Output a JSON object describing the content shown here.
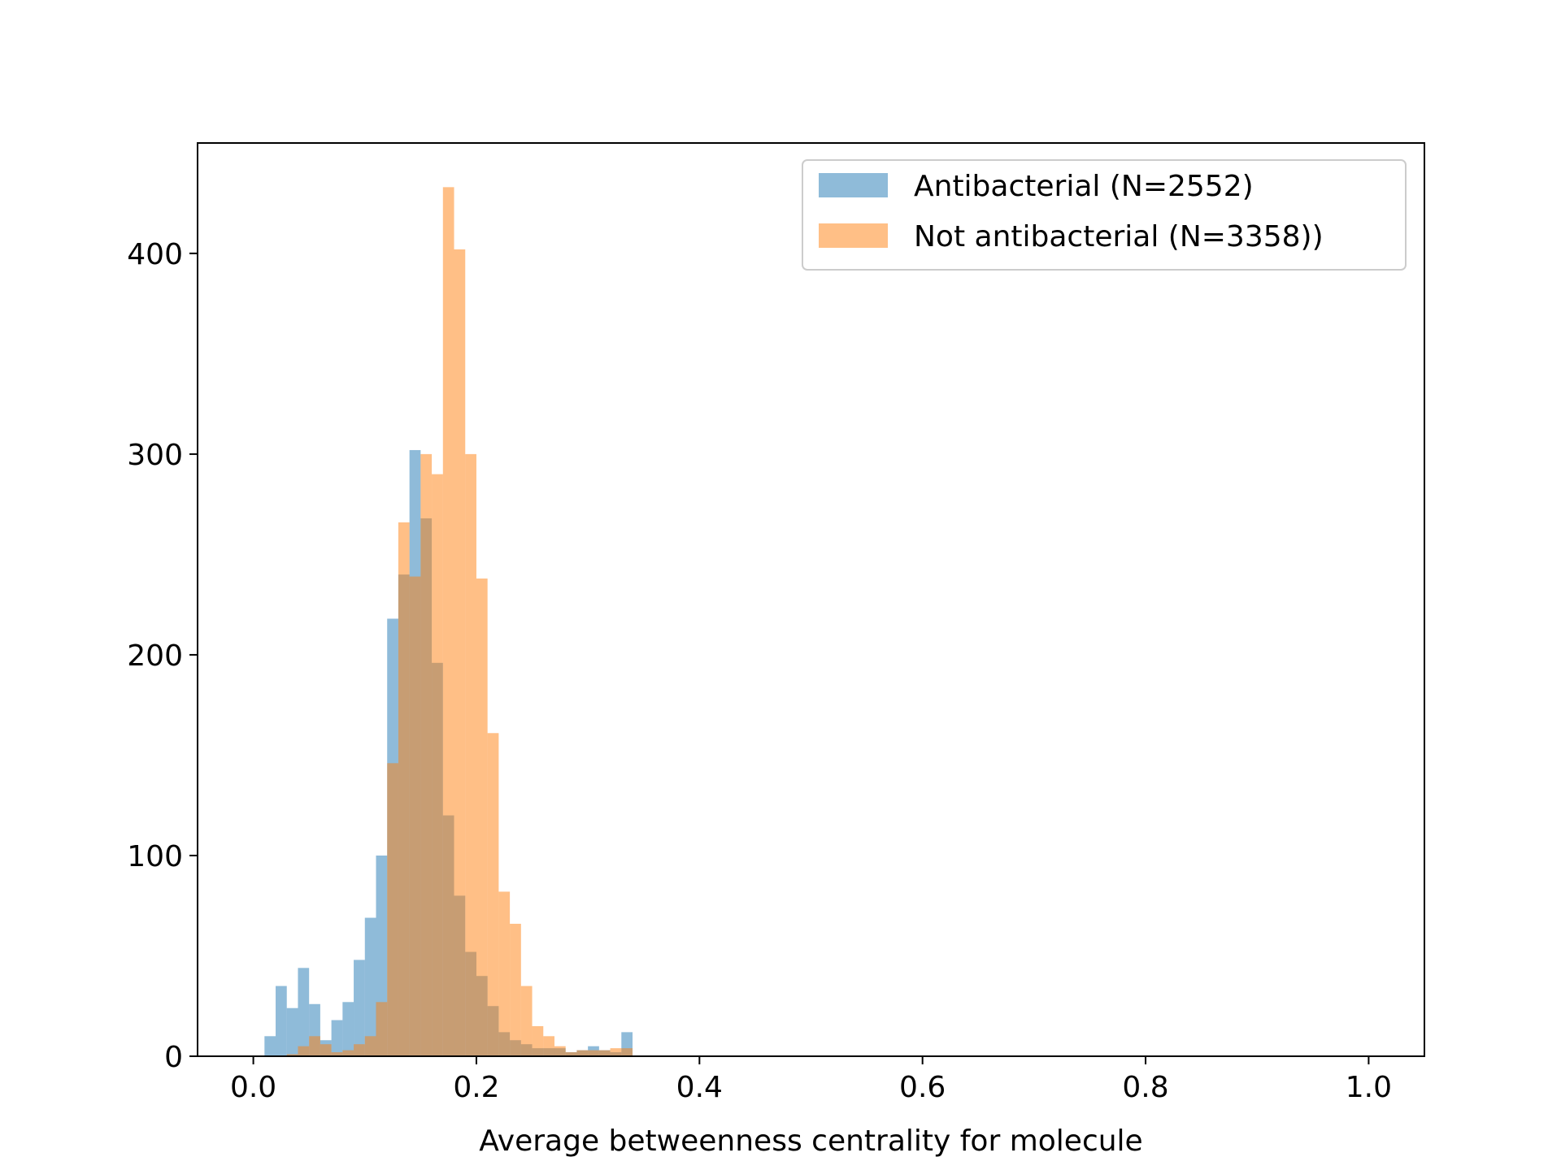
{
  "chart_data": {
    "type": "bar",
    "title": "",
    "xlabel": "Average betweenness centrality for molecule",
    "ylabel": "",
    "xlim": [
      -0.05,
      1.05
    ],
    "ylim": [
      0,
      455
    ],
    "xticks": [
      "0.0",
      "0.2",
      "0.4",
      "0.6",
      "0.8",
      "1.0"
    ],
    "yticks": [
      "0",
      "100",
      "200",
      "300",
      "400"
    ],
    "grid": false,
    "legend_position": "top-right",
    "bin_start": 0.0,
    "bin_width": 0.01,
    "series": [
      {
        "name": "Antibacterial (N=2552)",
        "color": "#1f77b4",
        "alpha": 0.5,
        "values": [
          0,
          10,
          35,
          24,
          44,
          26,
          8,
          18,
          27,
          48,
          69,
          100,
          218,
          240,
          302,
          268,
          196,
          120,
          80,
          52,
          40,
          25,
          12,
          8,
          6,
          4,
          4,
          4,
          2,
          3,
          5,
          3,
          2,
          12
        ]
      },
      {
        "name": "Not antibacterial (N=3358))",
        "color": "#ff7f0e",
        "alpha": 0.5,
        "values": [
          0,
          0,
          0,
          1,
          5,
          10,
          6,
          2,
          3,
          6,
          10,
          27,
          146,
          266,
          239,
          300,
          290,
          433,
          402,
          300,
          238,
          161,
          82,
          66,
          35,
          15,
          10,
          5,
          2,
          3,
          3,
          3,
          4,
          4
        ]
      }
    ]
  }
}
